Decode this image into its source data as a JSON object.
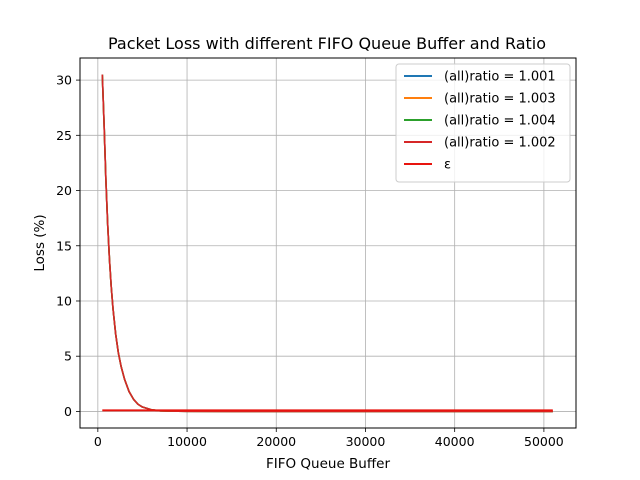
{
  "chart_data": {
    "type": "line",
    "title": "Packet Loss with different FIFO Queue Buffer and Ratio",
    "xlabel": "FIFO Queue Buffer",
    "ylabel": "Loss (%)",
    "xlim": [
      -2000,
      53600
    ],
    "ylim": [
      -1.5,
      32
    ],
    "xticks": [
      0,
      10000,
      20000,
      30000,
      40000,
      50000
    ],
    "yticks": [
      0,
      5,
      10,
      15,
      20,
      25,
      30
    ],
    "grid": true,
    "legend_position": "top-right",
    "x": [
      500,
      700,
      900,
      1100,
      1300,
      1500,
      1700,
      2000,
      2300,
      2600,
      3000,
      3500,
      4000,
      4500,
      5000,
      6000,
      7000,
      8000,
      10000,
      15000,
      20000,
      30000,
      40000,
      51000
    ],
    "series": [
      {
        "name": "(all)ratio = 1.001",
        "color": "#1f77b4",
        "values": [
          30.5,
          26.0,
          21.0,
          17.0,
          13.8,
          11.3,
          9.3,
          7.0,
          5.3,
          4.1,
          2.9,
          1.8,
          1.1,
          0.65,
          0.4,
          0.15,
          0.06,
          0.03,
          0.01,
          0.0,
          0.0,
          0.0,
          0.0,
          0.0
        ]
      },
      {
        "name": "(all)ratio = 1.003",
        "color": "#ff7f0e",
        "values": [
          30.5,
          26.0,
          21.0,
          17.0,
          13.8,
          11.3,
          9.3,
          7.0,
          5.3,
          4.1,
          2.9,
          1.8,
          1.1,
          0.65,
          0.4,
          0.15,
          0.06,
          0.03,
          0.01,
          0.0,
          0.0,
          0.0,
          0.0,
          0.0
        ]
      },
      {
        "name": "(all)ratio = 1.004",
        "color": "#2ca02c",
        "values": [
          30.5,
          26.0,
          21.0,
          17.0,
          13.8,
          11.3,
          9.3,
          7.0,
          5.3,
          4.1,
          2.9,
          1.8,
          1.1,
          0.65,
          0.4,
          0.15,
          0.06,
          0.03,
          0.01,
          0.0,
          0.0,
          0.0,
          0.0,
          0.0
        ]
      },
      {
        "name": "(all)ratio = 1.002",
        "color": "#d62728",
        "values": [
          30.5,
          26.0,
          21.0,
          17.0,
          13.8,
          11.3,
          9.3,
          7.0,
          5.3,
          4.1,
          2.9,
          1.8,
          1.1,
          0.65,
          0.4,
          0.15,
          0.06,
          0.03,
          0.01,
          0.0,
          0.0,
          0.0,
          0.0,
          0.0
        ]
      }
    ],
    "epsilon": {
      "name": "ε",
      "color": "#e8140e",
      "x": [
        500,
        51000
      ],
      "values": [
        0.1,
        0.1
      ]
    }
  }
}
